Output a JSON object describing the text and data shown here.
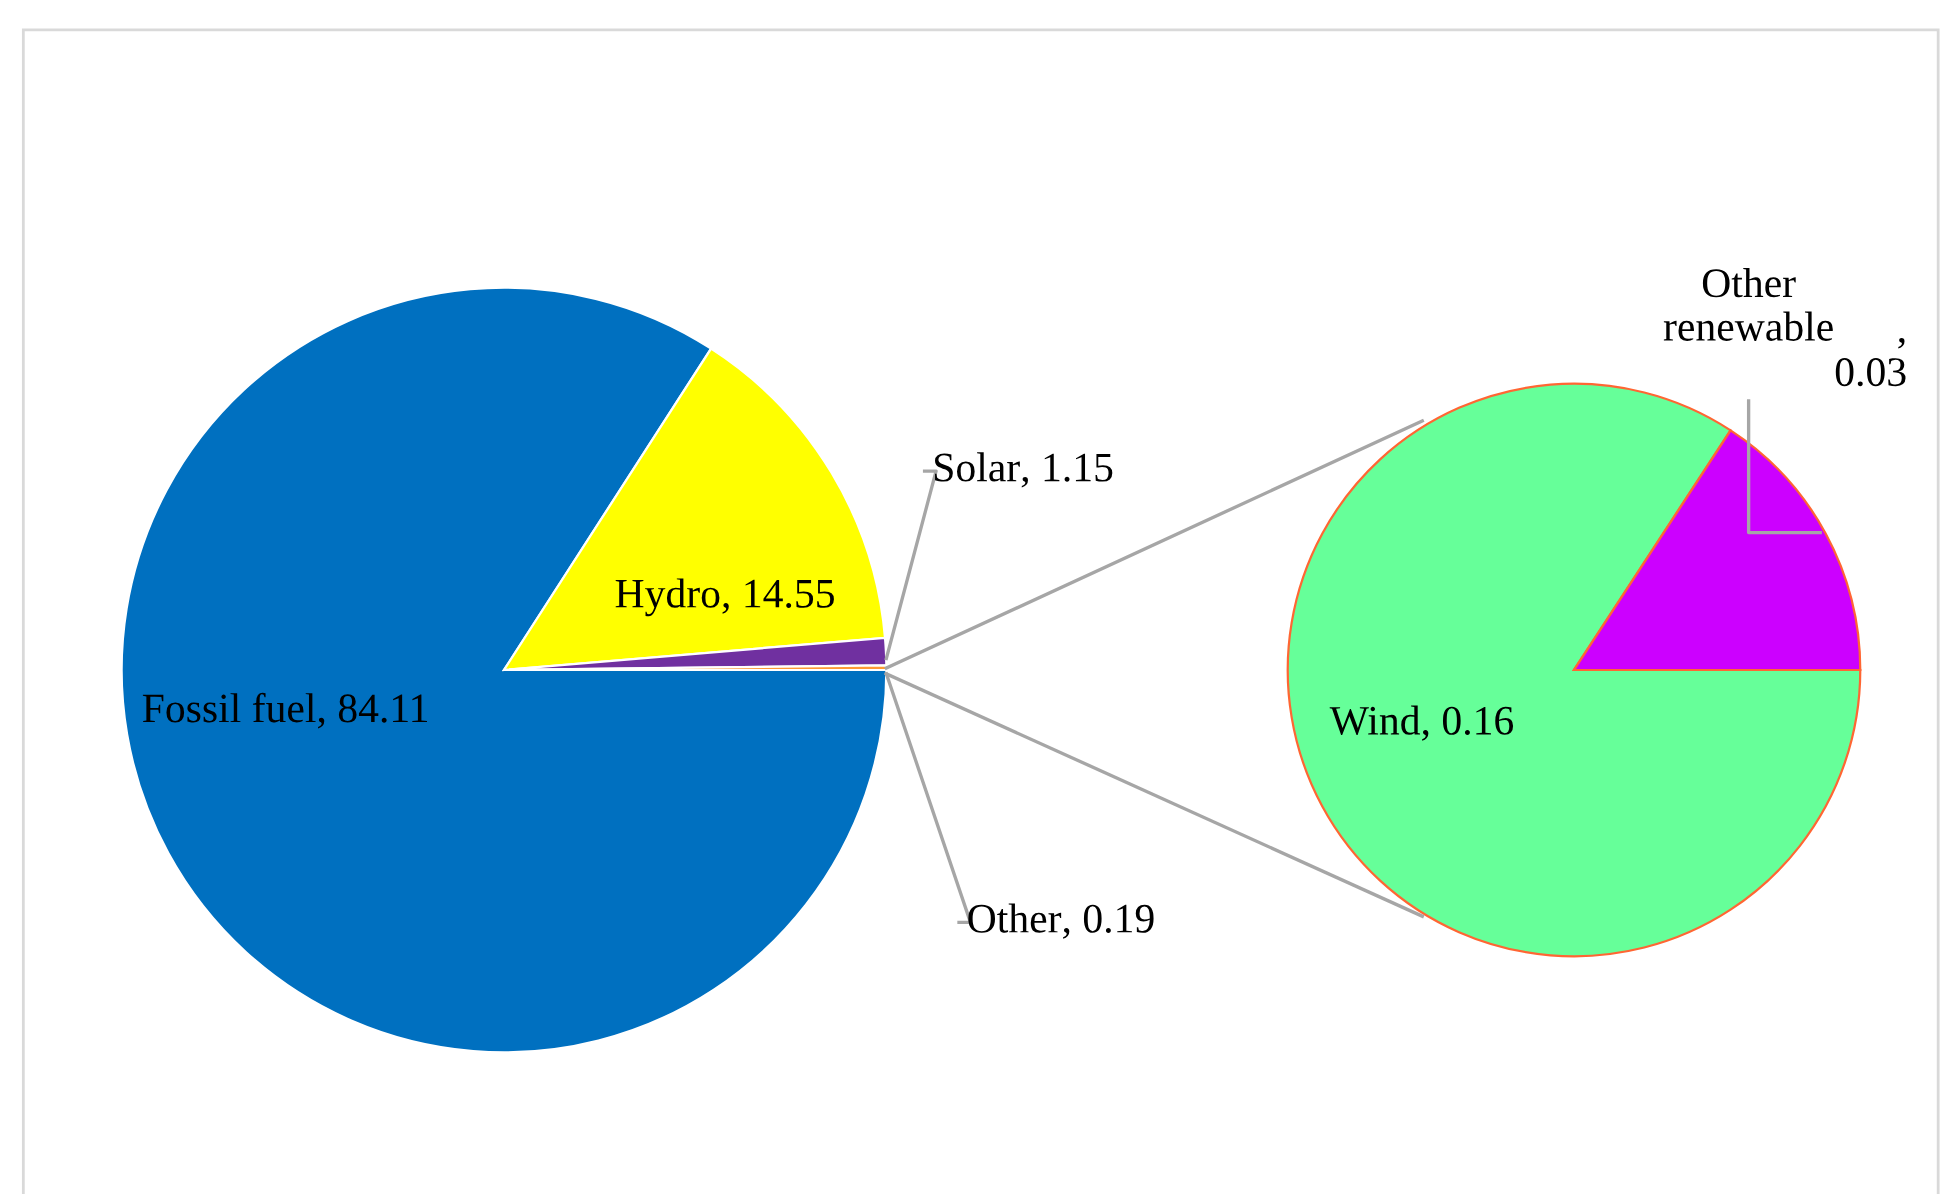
{
  "chart_data": [
    {
      "type": "pie",
      "categories": [
        "Fossil fuel",
        "Hydro",
        "Solar",
        "Other"
      ],
      "values": [
        84.11,
        14.55,
        1.15,
        0.19
      ],
      "colors": [
        "#0070c0",
        "#ffff00",
        "#7030a0",
        "#ff9933"
      ],
      "value_labels": [
        ", 84.11",
        ", 14.55",
        ", 1.15",
        ", 0.19"
      ]
    },
    {
      "type": "pie",
      "categories": [
        "Wind",
        "Other renewable"
      ],
      "values": [
        0.16,
        0.03
      ],
      "colors": [
        "#66ff99",
        "#cc00ff"
      ],
      "value_labels": [
        ", 0.16",
        ", 0.03"
      ]
    }
  ]
}
